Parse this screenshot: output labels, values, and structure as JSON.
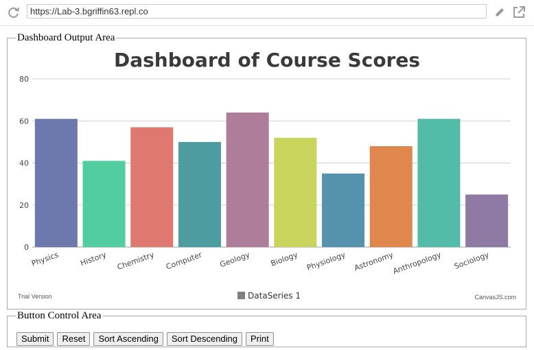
{
  "browser": {
    "url": "https://Lab-3.bgriffin63.repl.co"
  },
  "dashboard": {
    "legend": "Dashboard Output Area"
  },
  "controls": {
    "legend": "Button Control Area",
    "buttons": [
      "Submit",
      "Reset",
      "Sort Ascending",
      "Sort Descending",
      "Print"
    ]
  },
  "chart_data": {
    "type": "bar",
    "title": "Dashboard of Course Scores",
    "categories": [
      "Physics",
      "History",
      "Chemistry",
      "Computer",
      "Geology",
      "Biology",
      "Physiology",
      "Astronomy",
      "Anthropology",
      "Sociology"
    ],
    "values": [
      61,
      41,
      57,
      50,
      64,
      52,
      35,
      48,
      61,
      25
    ],
    "colors": [
      "#6d78ad",
      "#51cda0",
      "#df7970",
      "#4c9ca0",
      "#ae7d99",
      "#c9d45c",
      "#5592ad",
      "#df874d",
      "#52bca8",
      "#8e7aa3"
    ],
    "ylim": [
      0,
      80
    ],
    "yticks": [
      0,
      20,
      40,
      60,
      80
    ],
    "grid": true,
    "series": [
      {
        "name": "DataSeries 1",
        "values": [
          61,
          41,
          57,
          50,
          64,
          52,
          35,
          48,
          61,
          25
        ]
      }
    ],
    "legend_position": "bottom-center",
    "legend_color": "#808080",
    "trial_label": "Trial Version",
    "credit": "CanvasJS.com"
  }
}
